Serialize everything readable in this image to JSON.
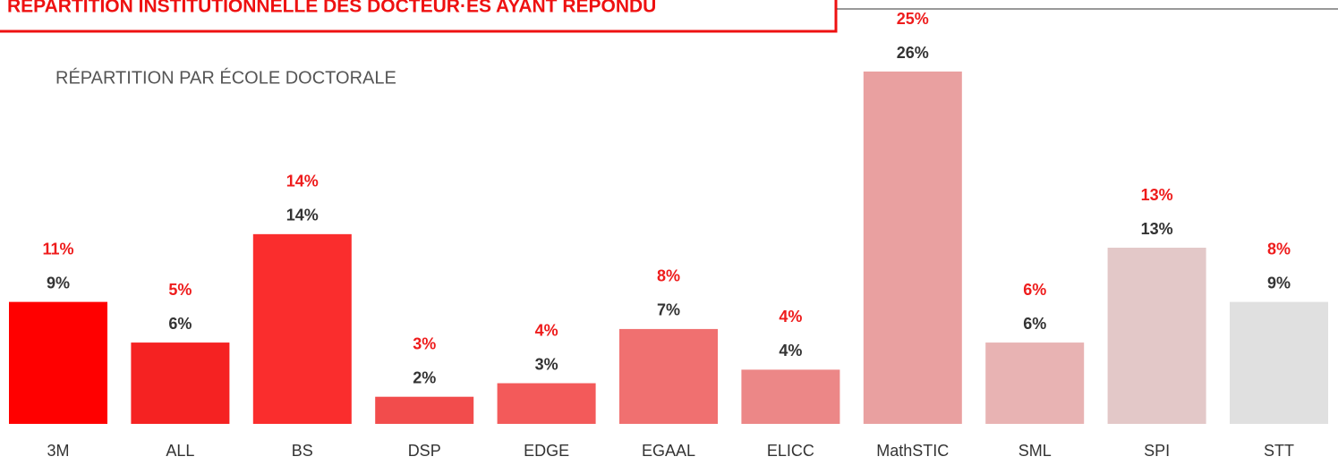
{
  "chart_data": {
    "type": "bar",
    "title": "RÉPARTITION INSTITUTIONNELLE DES DOCTEUR·ES AYANT RÉPONDU",
    "subtitle": "RÉPARTITION PAR ÉCOLE DOCTORALE",
    "categories": [
      "3M",
      "ALL",
      "BS",
      "DSP",
      "EDGE",
      "EGAAL",
      "ELICC",
      "MathSTIC",
      "SML",
      "SPI",
      "STT"
    ],
    "values": [
      9,
      6,
      14,
      2,
      3,
      7,
      4,
      26,
      6,
      13,
      9
    ],
    "value_labels": [
      "9%",
      "6%",
      "14%",
      "2%",
      "3%",
      "7%",
      "4%",
      "26%",
      "6%",
      "13%",
      "9%"
    ],
    "secondary_values": [
      11,
      5,
      14,
      3,
      4,
      8,
      4,
      25,
      6,
      13,
      8
    ],
    "secondary_value_labels": [
      "11%",
      "5%",
      "14%",
      "3%",
      "4%",
      "8%",
      "4%",
      "25%",
      "6%",
      "13%",
      "8%"
    ],
    "colors": [
      "#ff0000",
      "#f52222",
      "#fa2d2d",
      "#f24c4c",
      "#f35a5a",
      "#f07070",
      "#ec8787",
      "#e9a0a0",
      "#e8b3b3",
      "#e3c8c8",
      "#e0e0e0"
    ],
    "secondary_label_color": "#ee1c1c",
    "ylim": [
      0,
      26
    ]
  }
}
